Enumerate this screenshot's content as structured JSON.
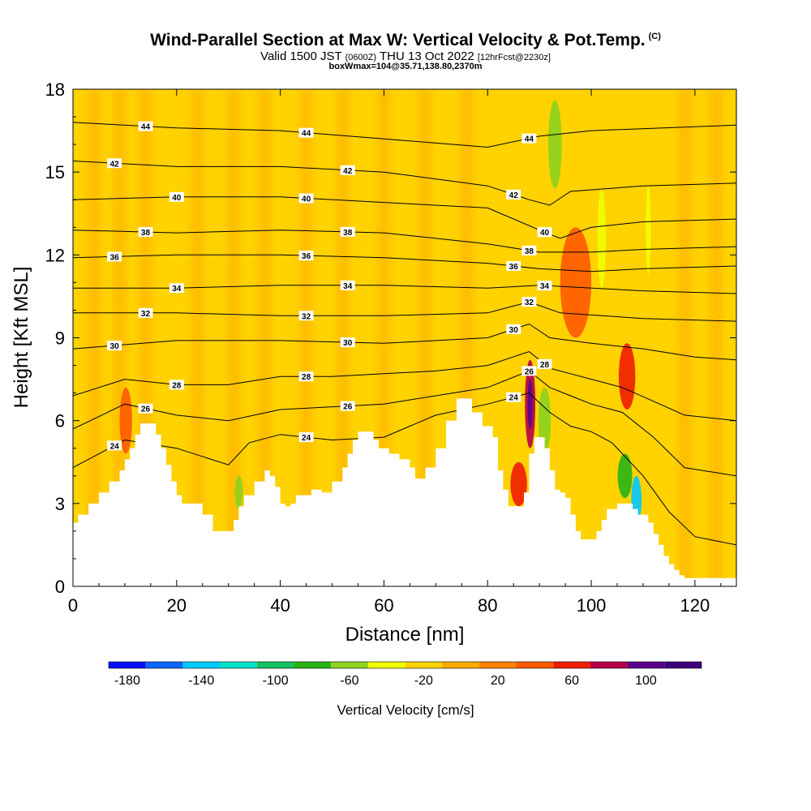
{
  "header": {
    "title": "Wind-Parallel Section at Max W: Vertical Velocity & Pot.Temp.",
    "copyright": "(C)",
    "valid_prefix": "Valid 1500 JST",
    "valid_utc": "(0600Z)",
    "valid_date": "THU 13 Oct 2022",
    "forecast": "[12hrFcst@2230z]",
    "boxinfo": "boxWmax=104@35.71,138.80,2370m"
  },
  "chart_data": {
    "type": "heatmap",
    "title": "Wind-Parallel Section at Max W: Vertical Velocity & Pot.Temp.",
    "xlabel": "Distance [nm]",
    "ylabel": "Height [Kft MSL]",
    "xlim": [
      0,
      128
    ],
    "ylim": [
      0,
      18
    ],
    "x_ticks": [
      0,
      20,
      40,
      60,
      80,
      100,
      120
    ],
    "y_ticks": [
      0,
      3,
      6,
      9,
      12,
      15,
      18
    ],
    "terrain": [
      [
        0,
        2.3
      ],
      [
        1,
        2.6
      ],
      [
        3,
        3.0
      ],
      [
        5,
        3.4
      ],
      [
        7,
        3.8
      ],
      [
        9,
        4.2
      ],
      [
        10,
        4.6
      ],
      [
        11,
        5.0
      ],
      [
        12,
        5.5
      ],
      [
        13,
        5.9
      ],
      [
        15,
        5.9
      ],
      [
        16,
        5.5
      ],
      [
        17,
        5.0
      ],
      [
        18,
        4.4
      ],
      [
        19,
        3.8
      ],
      [
        20,
        3.3
      ],
      [
        21,
        3.0
      ],
      [
        24,
        3.0
      ],
      [
        25,
        2.6
      ],
      [
        27,
        2.0
      ],
      [
        30,
        2.0
      ],
      [
        31,
        2.4
      ],
      [
        32,
        2.9
      ],
      [
        33,
        3.3
      ],
      [
        35,
        3.8
      ],
      [
        37,
        4.2
      ],
      [
        38,
        4.0
      ],
      [
        39,
        3.6
      ],
      [
        40,
        3.0
      ],
      [
        41,
        2.9
      ],
      [
        42,
        3.0
      ],
      [
        43,
        3.3
      ],
      [
        46,
        3.5
      ],
      [
        48,
        3.4
      ],
      [
        50,
        3.8
      ],
      [
        52,
        4.3
      ],
      [
        53,
        4.8
      ],
      [
        54,
        5.3
      ],
      [
        55,
        5.6
      ],
      [
        57,
        5.6
      ],
      [
        58,
        5.3
      ],
      [
        59,
        5.0
      ],
      [
        61,
        4.8
      ],
      [
        63,
        4.6
      ],
      [
        65,
        4.3
      ],
      [
        66,
        3.9
      ],
      [
        67,
        3.9
      ],
      [
        68,
        4.3
      ],
      [
        70,
        5.0
      ],
      [
        72,
        6.0
      ],
      [
        74,
        6.8
      ],
      [
        76,
        6.8
      ],
      [
        77,
        6.3
      ],
      [
        78,
        6.3
      ],
      [
        79,
        5.8
      ],
      [
        81,
        5.4
      ],
      [
        82,
        4.2
      ],
      [
        83,
        3.5
      ],
      [
        84,
        2.9
      ],
      [
        86,
        2.9
      ],
      [
        87,
        3.4
      ],
      [
        88,
        4.8
      ],
      [
        89,
        5.4
      ],
      [
        91,
        5.0
      ],
      [
        92,
        4.2
      ],
      [
        93,
        3.5
      ],
      [
        94,
        3.4
      ],
      [
        95,
        3.2
      ],
      [
        96,
        2.6
      ],
      [
        97,
        2.0
      ],
      [
        98,
        1.7
      ],
      [
        100,
        1.7
      ],
      [
        101,
        2.0
      ],
      [
        102,
        2.4
      ],
      [
        103,
        2.8
      ],
      [
        105,
        3.0
      ],
      [
        107,
        3.0
      ],
      [
        108,
        2.8
      ],
      [
        109,
        2.6
      ],
      [
        110,
        2.6
      ],
      [
        111,
        2.3
      ],
      [
        112,
        1.9
      ],
      [
        113,
        1.5
      ],
      [
        114,
        1.1
      ],
      [
        115,
        0.8
      ],
      [
        116,
        0.6
      ],
      [
        117,
        0.4
      ],
      [
        118,
        0.3
      ],
      [
        120,
        0.3
      ],
      [
        128,
        0.3
      ]
    ],
    "theta_contours": [
      {
        "value": 24,
        "heights": [
          [
            0,
            4.3
          ],
          [
            10,
            5.3
          ],
          [
            20,
            5.0
          ],
          [
            30,
            4.4
          ],
          [
            34,
            5.2
          ],
          [
            40,
            5.5
          ],
          [
            50,
            5.3
          ],
          [
            60,
            5.4
          ],
          [
            70,
            6.2
          ],
          [
            80,
            6.6
          ],
          [
            88,
            7.0
          ],
          [
            92,
            6.3
          ],
          [
            96,
            5.8
          ],
          [
            100,
            5.6
          ],
          [
            104,
            5.2
          ],
          [
            110,
            4.0
          ],
          [
            115,
            2.7
          ],
          [
            120,
            1.8
          ],
          [
            128,
            1.5
          ]
        ]
      },
      {
        "value": 26,
        "heights": [
          [
            0,
            5.7
          ],
          [
            10,
            6.6
          ],
          [
            20,
            6.2
          ],
          [
            30,
            6.0
          ],
          [
            40,
            6.4
          ],
          [
            50,
            6.5
          ],
          [
            60,
            6.6
          ],
          [
            70,
            6.9
          ],
          [
            80,
            7.2
          ],
          [
            88,
            7.8
          ],
          [
            92,
            7.2
          ],
          [
            96,
            6.9
          ],
          [
            100,
            6.6
          ],
          [
            106,
            6.3
          ],
          [
            112,
            5.4
          ],
          [
            118,
            4.3
          ],
          [
            128,
            4.0
          ]
        ]
      },
      {
        "value": 28,
        "heights": [
          [
            0,
            6.9
          ],
          [
            10,
            7.5
          ],
          [
            20,
            7.3
          ],
          [
            30,
            7.3
          ],
          [
            40,
            7.6
          ],
          [
            50,
            7.6
          ],
          [
            60,
            7.7
          ],
          [
            70,
            7.8
          ],
          [
            80,
            8.0
          ],
          [
            88,
            8.5
          ],
          [
            92,
            7.9
          ],
          [
            96,
            7.7
          ],
          [
            100,
            7.5
          ],
          [
            106,
            7.2
          ],
          [
            112,
            6.7
          ],
          [
            118,
            6.2
          ],
          [
            128,
            6.0
          ]
        ]
      },
      {
        "value": 30,
        "heights": [
          [
            0,
            8.6
          ],
          [
            20,
            8.9
          ],
          [
            40,
            8.9
          ],
          [
            60,
            8.8
          ],
          [
            80,
            9.0
          ],
          [
            88,
            9.5
          ],
          [
            92,
            9.0
          ],
          [
            100,
            8.8
          ],
          [
            110,
            8.6
          ],
          [
            120,
            8.3
          ],
          [
            128,
            8.2
          ]
        ]
      },
      {
        "value": 32,
        "heights": [
          [
            0,
            9.9
          ],
          [
            20,
            9.9
          ],
          [
            40,
            9.8
          ],
          [
            60,
            9.8
          ],
          [
            80,
            9.9
          ],
          [
            88,
            10.3
          ],
          [
            94,
            9.9
          ],
          [
            110,
            9.7
          ],
          [
            128,
            9.6
          ]
        ]
      },
      {
        "value": 34,
        "heights": [
          [
            0,
            10.8
          ],
          [
            20,
            10.8
          ],
          [
            40,
            10.9
          ],
          [
            60,
            10.9
          ],
          [
            80,
            10.8
          ],
          [
            90,
            10.9
          ],
          [
            110,
            10.7
          ],
          [
            128,
            10.6
          ]
        ]
      },
      {
        "value": 36,
        "heights": [
          [
            0,
            11.9
          ],
          [
            20,
            12.0
          ],
          [
            40,
            12.0
          ],
          [
            60,
            11.9
          ],
          [
            80,
            11.7
          ],
          [
            90,
            11.5
          ],
          [
            100,
            11.4
          ],
          [
            110,
            11.5
          ],
          [
            128,
            11.6
          ]
        ]
      },
      {
        "value": 38,
        "heights": [
          [
            0,
            12.9
          ],
          [
            20,
            12.8
          ],
          [
            40,
            12.9
          ],
          [
            60,
            12.8
          ],
          [
            80,
            12.4
          ],
          [
            90,
            12.1
          ],
          [
            100,
            12.1
          ],
          [
            110,
            12.2
          ],
          [
            128,
            12.3
          ]
        ]
      },
      {
        "value": 40,
        "heights": [
          [
            0,
            14.0
          ],
          [
            20,
            14.1
          ],
          [
            40,
            14.1
          ],
          [
            60,
            13.9
          ],
          [
            80,
            13.7
          ],
          [
            90,
            12.9
          ],
          [
            94,
            12.6
          ],
          [
            100,
            13.0
          ],
          [
            110,
            13.2
          ],
          [
            128,
            13.3
          ]
        ]
      },
      {
        "value": 42,
        "heights": [
          [
            0,
            15.4
          ],
          [
            20,
            15.2
          ],
          [
            40,
            15.2
          ],
          [
            60,
            15.0
          ],
          [
            80,
            14.5
          ],
          [
            88,
            14.0
          ],
          [
            92,
            13.8
          ],
          [
            96,
            14.3
          ],
          [
            110,
            14.5
          ],
          [
            128,
            14.6
          ]
        ]
      },
      {
        "value": 44,
        "heights": [
          [
            0,
            16.8
          ],
          [
            20,
            16.6
          ],
          [
            40,
            16.5
          ],
          [
            60,
            16.2
          ],
          [
            80,
            15.9
          ],
          [
            90,
            16.3
          ],
          [
            100,
            16.5
          ],
          [
            128,
            16.7
          ]
        ]
      }
    ],
    "velocity_features": [
      {
        "x": 88.2,
        "z": 6.6,
        "rx": 1.0,
        "rz": 1.6,
        "w": 80
      },
      {
        "x": 88.2,
        "z": 6.6,
        "rx": 0.5,
        "rz": 0.9,
        "w": 100
      },
      {
        "x": 106.9,
        "z": 7.6,
        "rx": 1.6,
        "rz": 1.2,
        "w": 50
      },
      {
        "x": 86.0,
        "z": 3.7,
        "rx": 1.6,
        "rz": 0.8,
        "w": 50
      },
      {
        "x": 10.2,
        "z": 6.0,
        "rx": 1.2,
        "rz": 1.2,
        "w": 40
      },
      {
        "x": 108.7,
        "z": 3.1,
        "rx": 1.0,
        "rz": 0.9,
        "w": -150
      },
      {
        "x": 106.5,
        "z": 4.0,
        "rx": 1.4,
        "rz": 0.8,
        "w": -80
      },
      {
        "x": 91.0,
        "z": 6.0,
        "rx": 1.2,
        "rz": 1.2,
        "w": -70
      },
      {
        "x": 93.0,
        "z": 16.0,
        "rx": 1.3,
        "rz": 1.6,
        "w": -60
      },
      {
        "x": 102.0,
        "z": 12.6,
        "rx": 0.8,
        "rz": 1.8,
        "w": -50
      },
      {
        "x": 111.0,
        "z": 12.9,
        "rx": 0.5,
        "rz": 1.6,
        "w": -50
      },
      {
        "x": 32.0,
        "z": 3.4,
        "rx": 0.8,
        "rz": 0.6,
        "w": -60
      },
      {
        "x": 97.0,
        "z": 11.0,
        "rx": 3.0,
        "rz": 2.0,
        "w": 30
      }
    ],
    "colorbar": {
      "title": "Vertical Velocity [cm/s]",
      "tick_values": [
        -180,
        -140,
        -100,
        -60,
        -20,
        20,
        60,
        100
      ],
      "bins": [
        -190,
        -170,
        -150,
        -130,
        -110,
        -90,
        -70,
        -50,
        -30,
        -10,
        10,
        30,
        50,
        70,
        90,
        110,
        130
      ],
      "colors": [
        "#0a10ff",
        "#0a66ff",
        "#00c8ff",
        "#00e0c8",
        "#14c060",
        "#28b414",
        "#8cd21e",
        "#f0ff00",
        "#ffd200",
        "#ffaa00",
        "#ff8200",
        "#ff5a00",
        "#ee1c00",
        "#b40046",
        "#5a008c",
        "#3c0078"
      ]
    },
    "colors": {
      "background_field": "#ffd200",
      "weak_ascent": "#ffaa00",
      "terrain": "#ffffff"
    }
  }
}
